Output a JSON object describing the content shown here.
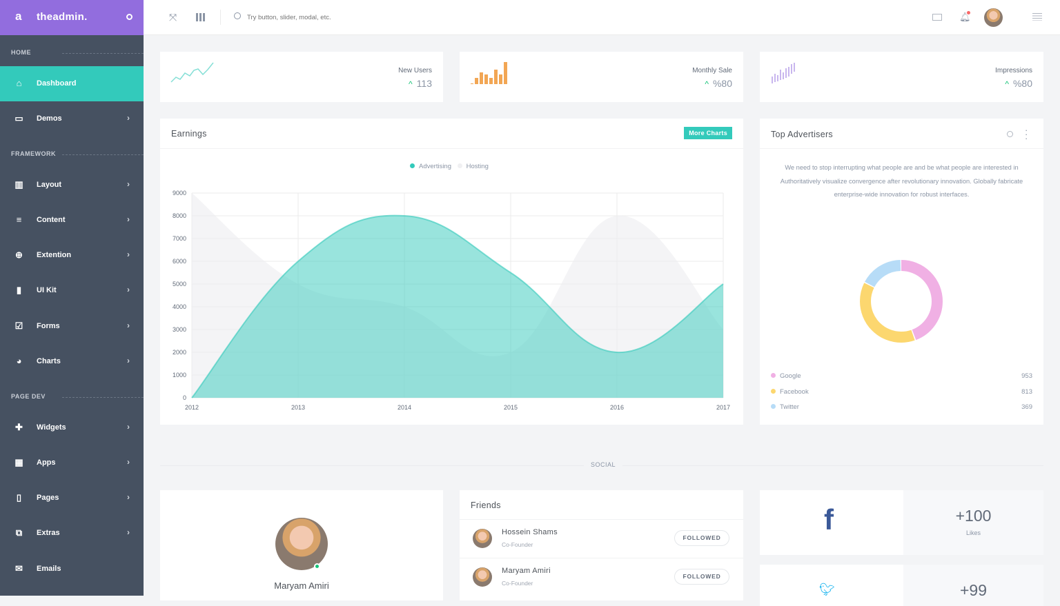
{
  "brand": {
    "letter": "a",
    "name": "theadmin."
  },
  "sidebar": {
    "sections": [
      "HOME",
      "FRAMEWORK",
      "PAGE DEV"
    ],
    "items": [
      {
        "label": "Dashboard",
        "icon": "home-icon"
      },
      {
        "label": "Demos",
        "icon": "monitor-icon"
      },
      {
        "label": "Layout",
        "icon": "layout-icon"
      },
      {
        "label": "Content",
        "icon": "align-icon"
      },
      {
        "label": "Extention",
        "icon": "plus-circle-icon"
      },
      {
        "label": "UI Kit",
        "icon": "ui-kit-icon"
      },
      {
        "label": "Forms",
        "icon": "checkbox-icon"
      },
      {
        "label": "Charts",
        "icon": "pie-chart-icon"
      },
      {
        "label": "Widgets",
        "icon": "puzzle-icon"
      },
      {
        "label": "Apps",
        "icon": "grid-icon"
      },
      {
        "label": "Pages",
        "icon": "page-icon"
      },
      {
        "label": "Extras",
        "icon": "copy-icon"
      },
      {
        "label": "Emails",
        "icon": "envelope-icon"
      }
    ]
  },
  "topbar": {
    "search_placeholder": "Try button, slider, modal, etc."
  },
  "stats": [
    {
      "title": "New Users",
      "value": "113",
      "color": "#33cabb"
    },
    {
      "title": "Monthly Sale",
      "value": "%80",
      "color": "#f2a654"
    },
    {
      "title": "Impressions",
      "value": "%80",
      "color": "#926dde"
    }
  ],
  "earnings": {
    "title": "Earnings",
    "button": "More Charts"
  },
  "chart_data": {
    "type": "area",
    "x": [
      "2012",
      "2013",
      "2014",
      "2015",
      "2016",
      "2017"
    ],
    "ylim": [
      0,
      9000
    ],
    "yticks": [
      "0",
      "1000",
      "2000",
      "3000",
      "4000",
      "5000",
      "6000",
      "7000",
      "8000",
      "9000"
    ],
    "grid": true,
    "legend": "top",
    "series": [
      {
        "name": "Advertising",
        "values": [
          0,
          6000,
          8000,
          5500,
          2000,
          5000
        ],
        "color": "#33cabb"
      },
      {
        "name": "Hosting",
        "values": [
          9000,
          5000,
          4000,
          2000,
          8000,
          3000
        ],
        "color": "#f3f3f5"
      }
    ]
  },
  "advertisers": {
    "title": "Top Advertisers",
    "text": "We need to stop interrupting what people are and be what people are interested in Authoritatively visualize convergence after revolutionary innovation. Globally fabricate enterprise-wide innovation for robust interfaces.",
    "items": [
      {
        "name": "Google",
        "value": 953,
        "color": "#f0b0e4"
      },
      {
        "name": "Facebook",
        "value": 813,
        "color": "#fcd76f"
      },
      {
        "name": "Twitter",
        "value": 369,
        "color": "#b7dcf7"
      }
    ]
  },
  "divider": "SOCIAL",
  "profile": {
    "name": "Maryam Amiri"
  },
  "friends": {
    "title": "Friends",
    "items": [
      {
        "name": "Hossein Shams",
        "role": "Co-Founder",
        "button": "FOLLOWED"
      },
      {
        "name": "Maryam Amiri",
        "role": "Co-Founder",
        "button": "FOLLOWED"
      }
    ]
  },
  "social": [
    {
      "network": "facebook",
      "count": "+100",
      "label": "Likes",
      "color": "#3b5998"
    },
    {
      "network": "twitter",
      "count": "+99",
      "color": "#00aced"
    }
  ]
}
